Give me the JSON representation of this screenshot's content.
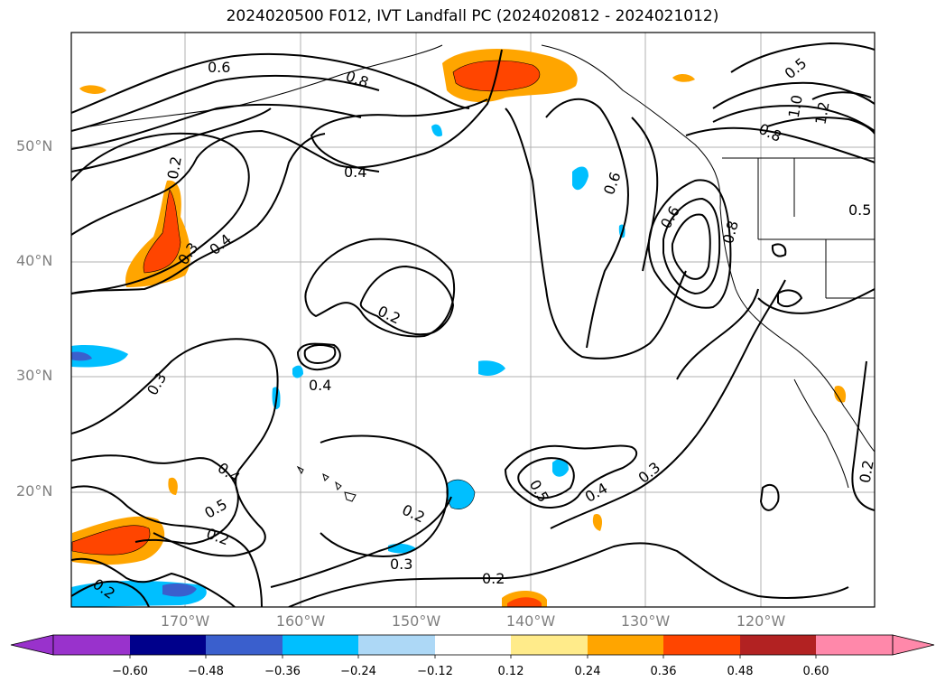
{
  "title": "2024020500 F012, IVT Landfall PC (2024020812 - 2024021012)",
  "lat_labels": [
    "50°N",
    "40°N",
    "30°N",
    "20°N"
  ],
  "lon_labels": [
    "170°W",
    "160°W",
    "150°W",
    "140°W",
    "130°W",
    "120°W"
  ],
  "contour_labels": [
    "0.6",
    "0.8",
    "0.4",
    "0.2",
    "0.3",
    "0.4",
    "0.2",
    "0.4",
    "0.3",
    "0.4",
    "0.5",
    "0.2",
    "0.2",
    "0.3",
    "0.2",
    "0.2",
    "0.5",
    "0.4",
    "0.3",
    "0.6",
    "0.6",
    "0.8",
    "0.8",
    "1.0",
    "1.2",
    "0.5",
    "0.5",
    "0.2"
  ],
  "colorbar": {
    "ticks": [
      "−0.60",
      "−0.48",
      "−0.36",
      "−0.24",
      "−0.12",
      "0.12",
      "0.24",
      "0.36",
      "0.48",
      "0.60"
    ],
    "colors": [
      "#9932cc",
      "#00008b",
      "#3a5fcd",
      "#00bfff",
      "#add8f6",
      "#ffffff",
      "#ffeb8a",
      "#ffa500",
      "#ff4500",
      "#b22222",
      "#ff88aa"
    ]
  },
  "fill_colors": {
    "orange": "#ffa500",
    "red_orange": "#ff4500",
    "yellow": "#ffeb8a",
    "light_blue": "#add8f6",
    "blue": "#00bfff",
    "royal_blue": "#3a5fcd"
  }
}
